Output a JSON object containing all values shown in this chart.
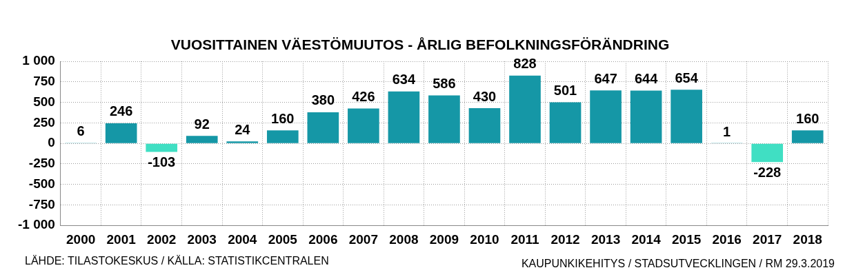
{
  "chart_data": {
    "type": "bar",
    "title": "VUOSITTAINEN VÄESTÖMUUTOS - ÅRLIG BEFOLKNINGSFÖRÄNDRING",
    "categories": [
      "2000",
      "2001",
      "2002",
      "2003",
      "2004",
      "2005",
      "2006",
      "2007",
      "2008",
      "2009",
      "2010",
      "2011",
      "2012",
      "2013",
      "2014",
      "2015",
      "2016",
      "2017",
      "2018"
    ],
    "values": [
      6,
      246,
      -103,
      92,
      24,
      160,
      380,
      426,
      634,
      586,
      430,
      828,
      501,
      647,
      644,
      654,
      1,
      -228,
      160
    ],
    "colors": [
      "#1597a6",
      "#1597a6",
      "#40dfc3",
      "#1597a6",
      "#1597a6",
      "#1597a6",
      "#1597a6",
      "#1597a6",
      "#1597a6",
      "#1597a6",
      "#1597a6",
      "#1597a6",
      "#1597a6",
      "#1597a6",
      "#1597a6",
      "#1597a6",
      "#1597a6",
      "#40dfc3",
      "#1597a6"
    ],
    "ylim": [
      -1000,
      1000
    ],
    "yticks": [
      {
        "value": -1000,
        "label": "-1 000"
      },
      -750,
      -500,
      -250,
      0,
      250,
      500,
      750,
      {
        "value": 1000,
        "label": "1 000"
      }
    ],
    "grid": true,
    "data_labels": true,
    "annotations": [
      "LÄHDE: TILASTOKESKUS / KÄLLA: STATISTIKCENTRALEN",
      "KAUPUNKIKEHITYS / STADSUTVECKLINGEN / RM 29.3.2019"
    ]
  }
}
